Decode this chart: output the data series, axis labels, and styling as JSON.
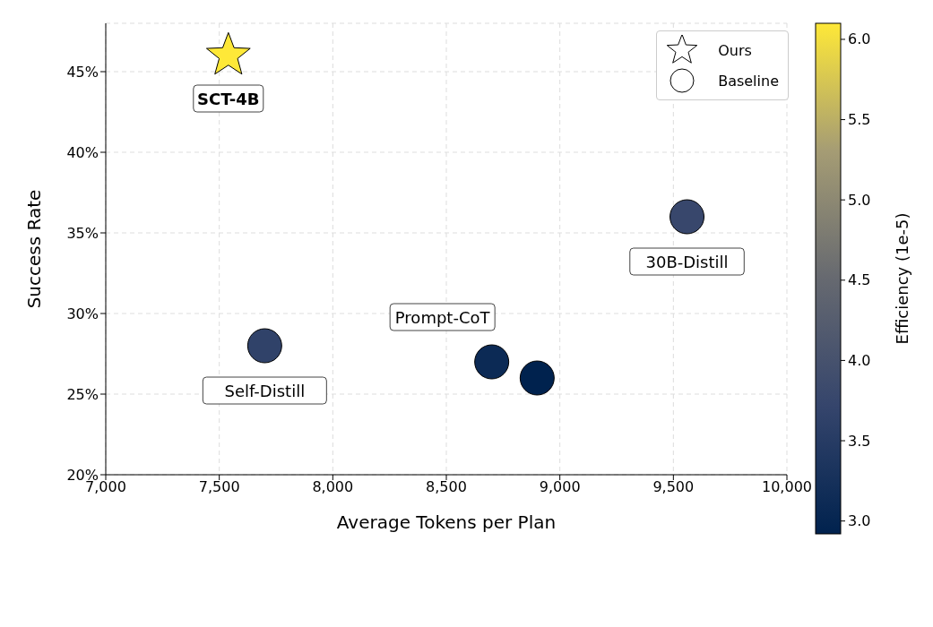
{
  "chart_data": {
    "type": "scatter",
    "xlabel": "Average Tokens per Plan",
    "ylabel": "Success Rate",
    "clabel": "Efficiency (1e-5)",
    "xlim": [
      7000,
      10000
    ],
    "xticks": [
      {
        "value": 7000,
        "label": "7,000"
      },
      {
        "value": 7500,
        "label": "7,500"
      },
      {
        "value": 8000,
        "label": "8,000"
      },
      {
        "value": 8500,
        "label": "8,500"
      },
      {
        "value": 9000,
        "label": "9,000"
      },
      {
        "value": 9500,
        "label": "9,500"
      },
      {
        "value": 10000,
        "label": "10,000"
      }
    ],
    "ylim": [
      20,
      48
    ],
    "yticks": [
      {
        "value": 20,
        "label": "20%"
      },
      {
        "value": 25,
        "label": "25%"
      },
      {
        "value": 30,
        "label": "30%"
      },
      {
        "value": 35,
        "label": "35%"
      },
      {
        "value": 40,
        "label": "40%"
      },
      {
        "value": 45,
        "label": "45%"
      }
    ],
    "clim": [
      2.92,
      6.1
    ],
    "cticks": [
      {
        "value": 3,
        "label": "3.0"
      },
      3.5,
      {
        "value": 4,
        "label": "4.0"
      },
      4.5,
      {
        "value": 5,
        "label": "5.0"
      },
      5.5,
      {
        "value": 6,
        "label": "6.0"
      }
    ],
    "series": [
      {
        "name": "Ours",
        "marker": "star",
        "x": [
          7540
        ],
        "values": [
          46
        ],
        "color": "#fee838"
      },
      {
        "name": "Baseline",
        "marker": "circle",
        "x": [
          7700,
          8700,
          8900,
          9560
        ],
        "values": [
          28,
          27,
          26,
          36
        ],
        "colors": [
          "#304269",
          "#0c2a55",
          "#00224e",
          "#38476c"
        ]
      }
    ],
    "annotations": [
      {
        "text": "SCT-4B",
        "x": 7540,
        "y": 46
      },
      {
        "text": "Self-Distill",
        "x": 7700,
        "y": 28
      },
      {
        "text": "Prompt-CoT",
        "x": 8700,
        "y": 27
      },
      {
        "text": "30B-Distill",
        "x": 9560,
        "y": 36
      }
    ],
    "grid": true,
    "legend": "top right"
  }
}
